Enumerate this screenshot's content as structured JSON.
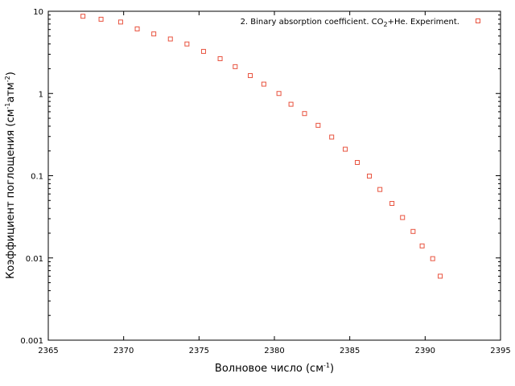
{
  "chart_data": {
    "type": "scatter",
    "title": "",
    "xlabel": {
      "main": "Волновое число (см",
      "sup": "-1",
      "end": ")"
    },
    "ylabel": {
      "part1": "Коэффициент поглощения (см",
      "sup1": "-1",
      "part2": "атм",
      "sup2": "-2",
      "end": ")"
    },
    "xlim": [
      2365,
      2395
    ],
    "ylim": [
      0.001,
      10
    ],
    "yscale": "log",
    "grid": false,
    "legend_position": "top-right",
    "x_ticks": [
      "2365",
      "2370",
      "2375",
      "2380",
      "2385",
      "2390",
      "2395"
    ],
    "y_ticks": [
      "0.001",
      "0.01",
      "0.1",
      "1",
      "10"
    ],
    "series": [
      {
        "name": {
          "part1": "2. Binary absorption coefficient. CO",
          "sub": "2",
          "part2": "+He. Experiment."
        },
        "marker": "open-square",
        "color": "#e8533f",
        "x": [
          2367.3,
          2368.5,
          2369.8,
          2370.9,
          2372.0,
          2373.1,
          2374.2,
          2375.3,
          2376.4,
          2377.4,
          2378.4,
          2379.3,
          2380.3,
          2381.1,
          2382.0,
          2382.9,
          2383.8,
          2384.7,
          2385.5,
          2386.3,
          2387.0,
          2387.8,
          2388.5,
          2389.2,
          2389.8,
          2390.5,
          2391.0
        ],
        "y": [
          8.7,
          8.0,
          7.4,
          6.1,
          5.3,
          4.6,
          4.0,
          3.25,
          2.65,
          2.12,
          1.65,
          1.3,
          1.0,
          0.74,
          0.57,
          0.41,
          0.295,
          0.21,
          0.145,
          0.099,
          0.068,
          0.046,
          0.031,
          0.021,
          0.014,
          0.0098,
          0.006
        ]
      }
    ]
  }
}
